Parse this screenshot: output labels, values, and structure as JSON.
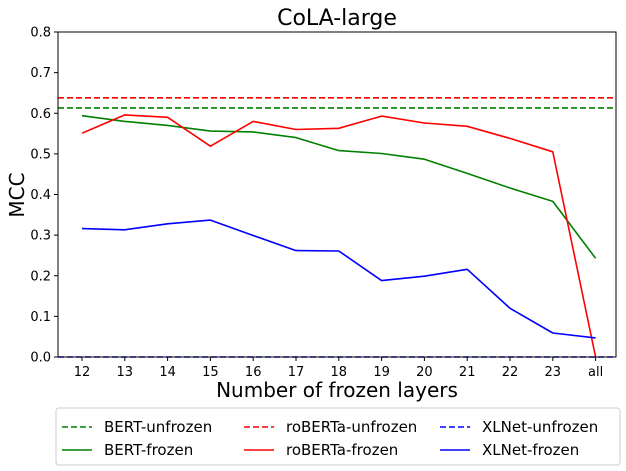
{
  "chart_data": {
    "type": "line",
    "title": "CoLA-large",
    "xlabel": "Number of frozen layers",
    "ylabel": "MCC",
    "categories": [
      "12",
      "13",
      "14",
      "15",
      "16",
      "17",
      "18",
      "19",
      "20",
      "21",
      "22",
      "23",
      "all"
    ],
    "ylim": [
      0.0,
      0.8
    ],
    "yticks": [
      "0.0",
      "0.1",
      "0.2",
      "0.3",
      "0.4",
      "0.5",
      "0.6",
      "0.7",
      "0.8"
    ],
    "grid": false,
    "legend_position": "bottom-center",
    "baselines": [
      {
        "name": "BERT-unfrozen",
        "value": 0.613,
        "color": "#008000",
        "style": "dashed"
      },
      {
        "name": "roBERTa-unfrozen",
        "value": 0.638,
        "color": "#ff0000",
        "style": "dashed"
      },
      {
        "name": "XLNet-unfrozen",
        "value": 0.0,
        "color": "#0000ff",
        "style": "dashed"
      }
    ],
    "series": [
      {
        "name": "BERT-frozen",
        "color": "#008000",
        "style": "solid",
        "values": [
          0.594,
          0.58,
          0.57,
          0.556,
          0.554,
          0.54,
          0.508,
          0.501,
          0.487,
          0.452,
          0.416,
          0.383,
          0.243
        ]
      },
      {
        "name": "roBERTa-frozen",
        "color": "#ff0000",
        "style": "solid",
        "values": [
          0.551,
          0.596,
          0.59,
          0.519,
          0.58,
          0.56,
          0.563,
          0.593,
          0.576,
          0.568,
          0.538,
          0.505,
          0.0
        ]
      },
      {
        "name": "XLNet-frozen",
        "color": "#0000ff",
        "style": "solid",
        "values": [
          0.316,
          0.313,
          0.328,
          0.337,
          0.299,
          0.262,
          0.261,
          0.188,
          0.199,
          0.216,
          0.12,
          0.059,
          0.047
        ]
      }
    ],
    "legend_order": [
      "BERT-unfrozen",
      "BERT-frozen",
      "roBERTa-unfrozen",
      "roBERTa-frozen",
      "XLNet-unfrozen",
      "XLNet-frozen"
    ]
  }
}
